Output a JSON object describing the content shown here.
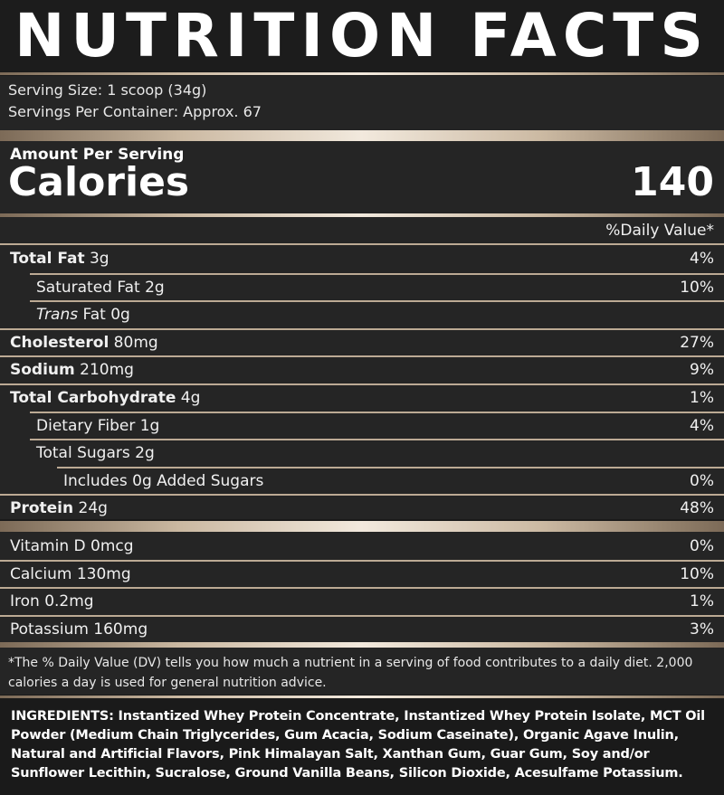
{
  "title": "NUTRITION FACTS",
  "serving": {
    "size": "Serving Size: 1 scoop (34g)",
    "per_container": "Servings Per Container: Approx. 67"
  },
  "calories": {
    "amount_label": "Amount Per Serving",
    "label": "Calories",
    "value": "140"
  },
  "daily_value_header": "%Daily Value*",
  "nutrients": {
    "total_fat": {
      "name": "Total Fat",
      "amount": " 3g",
      "dv": "4%"
    },
    "saturated_fat": {
      "name": "Saturated Fat 2g",
      "dv": "10%"
    },
    "trans_fat": {
      "name_italic": "Trans",
      "name_rest": " Fat 0g"
    },
    "cholesterol": {
      "name": "Cholesterol",
      "amount": " 80mg",
      "dv": "27%"
    },
    "sodium": {
      "name": "Sodium",
      "amount": " 210mg",
      "dv": "9%"
    },
    "total_carb": {
      "name": "Total Carbohydrate",
      "amount": " 4g",
      "dv": "1%"
    },
    "dietary_fiber": {
      "name": "Dietary Fiber 1g",
      "dv": "4%"
    },
    "total_sugars": {
      "name": "Total Sugars 2g"
    },
    "added_sugars": {
      "name": "Includes 0g Added Sugars",
      "dv": "0%"
    },
    "protein": {
      "name": "Protein",
      "amount": " 24g",
      "dv": "48%"
    }
  },
  "vitamins": {
    "vitamin_d": {
      "name": "Vitamin D 0mcg",
      "dv": "0%"
    },
    "calcium": {
      "name": "Calcium 130mg",
      "dv": "10%"
    },
    "iron": {
      "name": "Iron 0.2mg",
      "dv": "1%"
    },
    "potassium": {
      "name": "Potassium 160mg",
      "dv": "3%"
    }
  },
  "footnote": "*The % Daily Value (DV) tells you how much a nutrient in a serving of food contributes to a daily diet. 2,000 calories a day is used for general nutrition advice.",
  "ingredients": "INGREDIENTS: Instantized Whey Protein Concentrate, Instantized Whey Protein Isolate, MCT Oil Powder (Medium Chain Triglycerides, Gum Acacia, Sodium Caseinate), Organic Agave Inulin, Natural and Artificial Flavors, Pink Himalayan Salt, Xanthan Gum, Guar Gum, Soy and/or Sunflower Lecithin, Sucralose, Ground Vanilla Beans, Silicon Dioxide, Acesulfame Potassium."
}
